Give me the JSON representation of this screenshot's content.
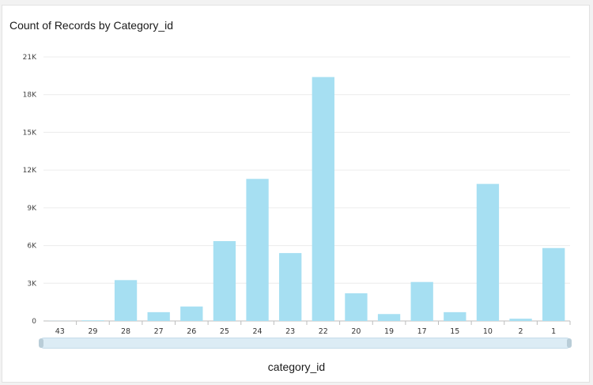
{
  "chart_title": "Count of Records by Category_id",
  "chart_data": {
    "type": "bar",
    "title": "Count of Records by Category_id",
    "xlabel": "category_id",
    "ylabel": "",
    "categories": [
      "43",
      "29",
      "28",
      "27",
      "26",
      "25",
      "24",
      "23",
      "22",
      "20",
      "19",
      "17",
      "15",
      "10",
      "2",
      "1"
    ],
    "values": [
      10,
      50,
      3250,
      700,
      1150,
      6350,
      11300,
      5400,
      19400,
      2200,
      550,
      3100,
      700,
      10900,
      180,
      5800
    ],
    "ylim": [
      0,
      21000
    ],
    "yticks": [
      "0",
      "3K",
      "6K",
      "9K",
      "12K",
      "15K",
      "18K",
      "21K"
    ],
    "ytick_values": [
      0,
      3000,
      6000,
      9000,
      12000,
      15000,
      18000,
      21000
    ],
    "bar_color": "#a6dff2",
    "grid": true,
    "legend": "none"
  }
}
